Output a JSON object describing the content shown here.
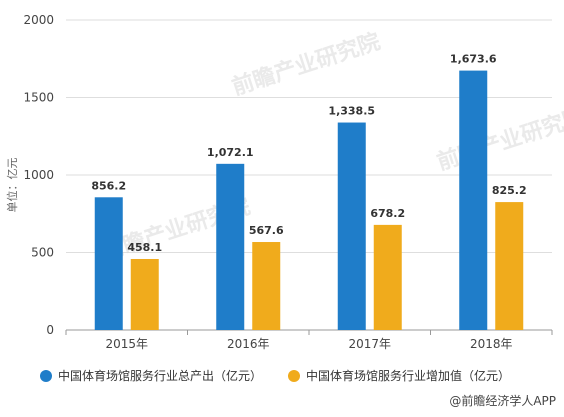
{
  "chart_data": {
    "type": "bar",
    "categories": [
      "2015年",
      "2016年",
      "2017年",
      "2018年"
    ],
    "series": [
      {
        "name": "中国体育场馆服务行业总产出（亿元）",
        "color": "#1f7dc9",
        "values": [
          856.2,
          1072.1,
          1338.5,
          1673.6
        ],
        "labels": [
          "856.2",
          "1,072.1",
          "1,338.5",
          "1,673.6"
        ]
      },
      {
        "name": "中国体育场馆服务行业增加值（亿元）",
        "color": "#f0ab1c",
        "values": [
          458.1,
          567.6,
          678.2,
          825.2
        ],
        "labels": [
          "458.1",
          "567.6",
          "678.2",
          "825.2"
        ]
      }
    ],
    "ylabel": "单位：亿元",
    "ylim": [
      0,
      2000
    ],
    "yticks": [
      0,
      500,
      1000,
      1500,
      2000
    ],
    "grid": true,
    "legend": "bottom"
  },
  "watermark": {
    "text": "前瞻产业研究院",
    "color": "#d9d9d9"
  },
  "credit": {
    "text": "@前瞻经济学人APP"
  }
}
